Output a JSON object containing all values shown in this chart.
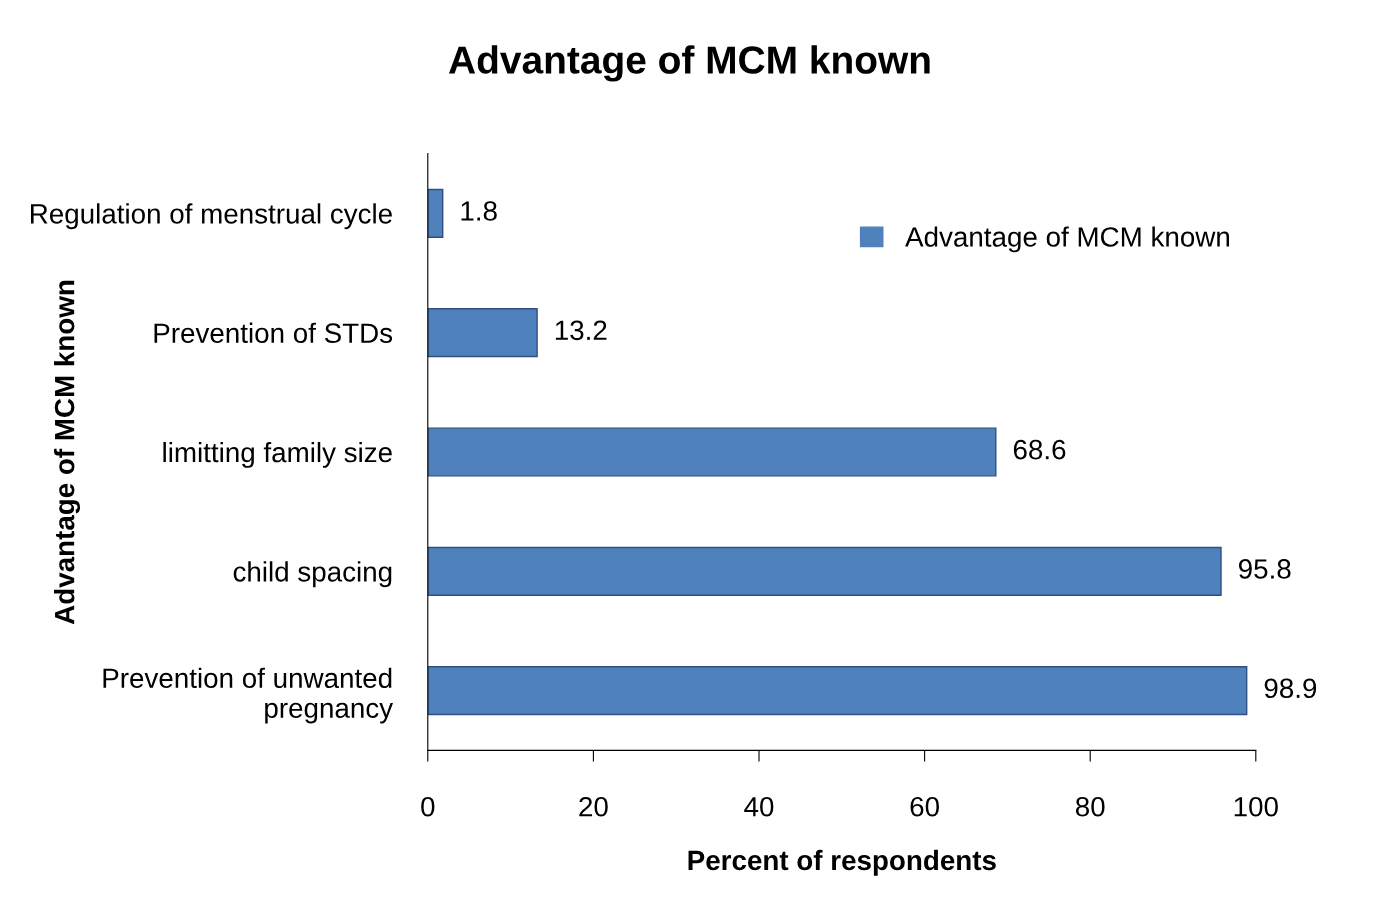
{
  "chart_data": {
    "type": "bar",
    "orientation": "horizontal",
    "title": "Advantage of MCM known",
    "xlabel": "Percent of respondents",
    "ylabel": "Advantage of MCM known",
    "categories": [
      "Regulation of menstrual cycle",
      "Prevention of STDs",
      "limitting family size",
      "child spacing",
      "Prevention of unwanted pregnancy"
    ],
    "series": [
      {
        "name": "Advantage of MCM known",
        "color": "#4f81bd",
        "values": [
          1.8,
          13.2,
          68.6,
          95.8,
          98.9
        ]
      }
    ],
    "xlim": [
      0,
      100
    ],
    "xticks": [
      0,
      20,
      40,
      60,
      80,
      100
    ],
    "data_labels": true,
    "legend": "top right",
    "grid": false
  }
}
